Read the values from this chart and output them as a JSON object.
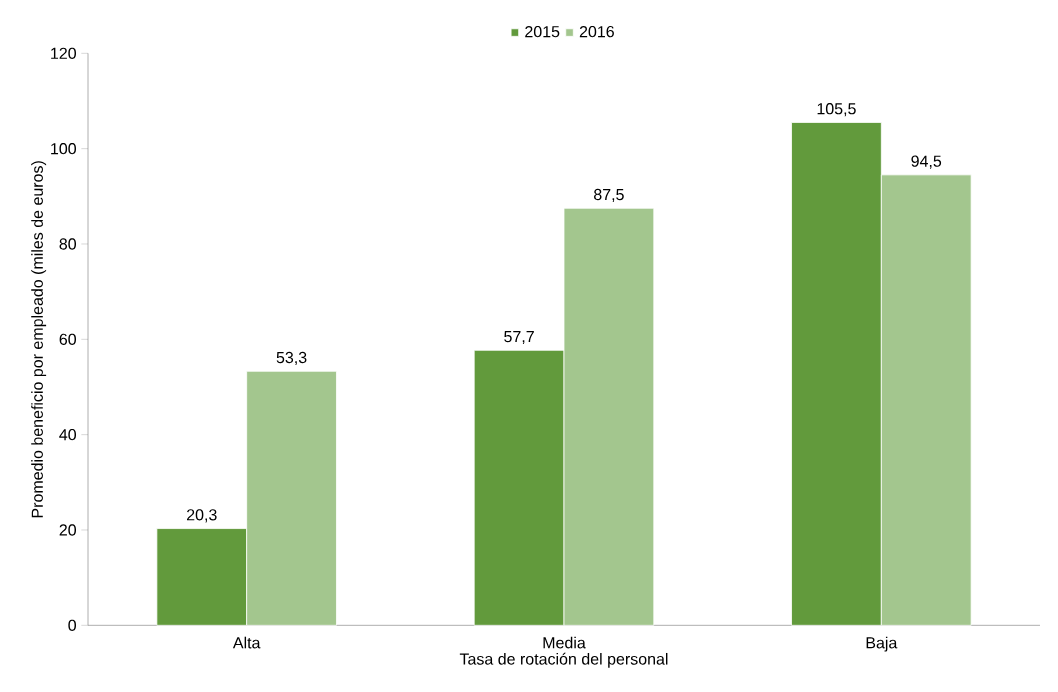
{
  "chart_data": {
    "type": "bar",
    "xlabel": "Tasa  de rotación del personal",
    "ylabel": "Promedio  beneficio por empleado (miles de euros)",
    "categories": [
      "Alta",
      "Media",
      "Baja"
    ],
    "series": [
      {
        "name": "2015",
        "color": "#629a3c",
        "values": [
          20.3,
          57.7,
          105.5
        ],
        "value_labels": [
          "20,3",
          "57,7",
          "105,5"
        ]
      },
      {
        "name": "2016",
        "color": "#a3c68e",
        "values": [
          53.3,
          87.5,
          94.5
        ],
        "value_labels": [
          "53,3",
          "87,5",
          "94,5"
        ]
      }
    ],
    "ylim": [
      0,
      120
    ],
    "yticks": [
      0,
      20,
      40,
      60,
      80,
      100,
      120
    ],
    "legend": "top"
  }
}
